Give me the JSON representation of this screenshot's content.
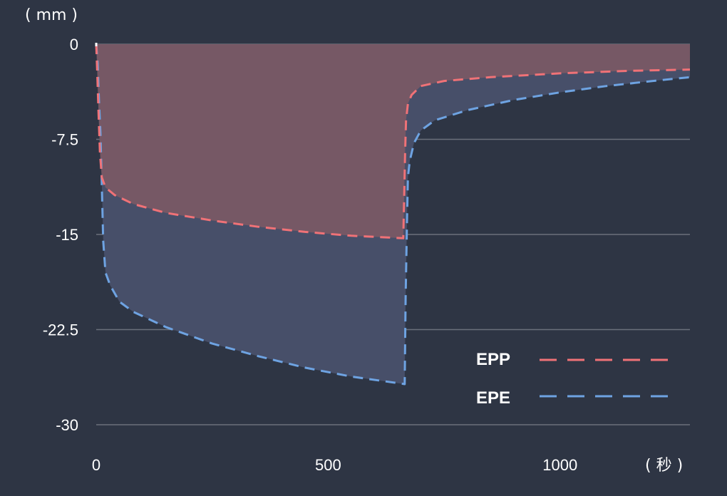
{
  "chart_data": {
    "type": "area",
    "y_unit_label": "( mm )",
    "x_unit_label": "( 秒 )",
    "xlim": [
      0,
      1280
    ],
    "ylim": [
      -30,
      0
    ],
    "x_ticks": [
      {
        "value": 0,
        "label": "0"
      },
      {
        "value": 500,
        "label": "500"
      },
      {
        "value": 1000,
        "label": "1000"
      }
    ],
    "y_ticks": [
      {
        "value": 0,
        "label": "0"
      },
      {
        "value": -7.5,
        "label": "-7.5"
      },
      {
        "value": -15,
        "label": "-15"
      },
      {
        "value": -22.5,
        "label": "-22.5"
      },
      {
        "value": -30,
        "label": "-30"
      }
    ],
    "grid": true,
    "legend_position": "bottom-right",
    "series": [
      {
        "name": "EPP",
        "color": "#f07277",
        "fill": "#765865",
        "points": [
          [
            0,
            0
          ],
          [
            2,
            -2.0
          ],
          [
            5,
            -5.5
          ],
          [
            8,
            -8.5
          ],
          [
            12,
            -10.5
          ],
          [
            20,
            -11.3
          ],
          [
            40,
            -11.9
          ],
          [
            80,
            -12.6
          ],
          [
            150,
            -13.3
          ],
          [
            250,
            -13.9
          ],
          [
            350,
            -14.4
          ],
          [
            450,
            -14.8
          ],
          [
            550,
            -15.1
          ],
          [
            662,
            -15.3
          ],
          [
            664,
            -12.0
          ],
          [
            666,
            -8.5
          ],
          [
            668,
            -6.0
          ],
          [
            672,
            -4.7
          ],
          [
            680,
            -4.0
          ],
          [
            700,
            -3.3
          ],
          [
            750,
            -2.9
          ],
          [
            850,
            -2.6
          ],
          [
            1000,
            -2.3
          ],
          [
            1150,
            -2.1
          ],
          [
            1280,
            -2.0
          ]
        ]
      },
      {
        "name": "EPE",
        "color": "#6ea3e2",
        "fill": "#474f69",
        "points": [
          [
            0,
            0
          ],
          [
            3,
            -1.5
          ],
          [
            6,
            -4.5
          ],
          [
            9,
            -7.0
          ],
          [
            12,
            -11.0
          ],
          [
            15,
            -15.5
          ],
          [
            20,
            -18.0
          ],
          [
            30,
            -19.0
          ],
          [
            50,
            -20.3
          ],
          [
            80,
            -21.1
          ],
          [
            150,
            -22.3
          ],
          [
            250,
            -23.6
          ],
          [
            350,
            -24.6
          ],
          [
            450,
            -25.5
          ],
          [
            550,
            -26.2
          ],
          [
            665,
            -26.8
          ],
          [
            667,
            -20.0
          ],
          [
            670,
            -14.0
          ],
          [
            672,
            -10.5
          ],
          [
            676,
            -9.2
          ],
          [
            685,
            -7.8
          ],
          [
            700,
            -6.8
          ],
          [
            730,
            -6.0
          ],
          [
            800,
            -5.2
          ],
          [
            900,
            -4.4
          ],
          [
            1000,
            -3.8
          ],
          [
            1100,
            -3.3
          ],
          [
            1200,
            -2.9
          ],
          [
            1280,
            -2.6
          ]
        ]
      }
    ]
  }
}
